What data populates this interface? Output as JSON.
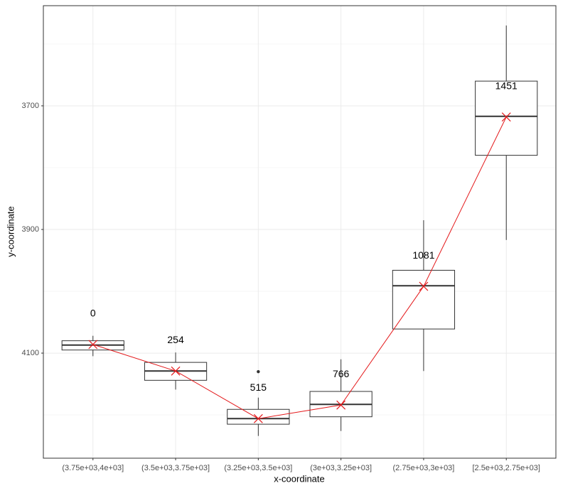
{
  "chart_data": {
    "type": "boxplot",
    "x_label": "x-coordinate",
    "y_label": "y-coordinate",
    "categories": [
      "(3.75e+03,4e+03]",
      "(3.5e+03,3.75e+03]",
      "(3.25e+03,3.5e+03]",
      "(3e+03,3.25e+03]",
      "(2.75e+03,3e+03]",
      "[2.5e+03,2.75e+03]"
    ],
    "boxes": [
      {
        "min": 4072,
        "q1": 4080,
        "median": 4087,
        "q3": 4095,
        "max": 4105,
        "mean": 4086,
        "outliers": []
      },
      {
        "min": 4099,
        "q1": 4115,
        "median": 4129,
        "q3": 4144,
        "max": 4159,
        "mean": 4129,
        "outliers": []
      },
      {
        "min": 4172,
        "q1": 4191,
        "median": 4206,
        "q3": 4215,
        "max": 4234,
        "mean": 4206,
        "outliers": [
          4130
        ]
      },
      {
        "min": 4110,
        "q1": 4162,
        "median": 4183,
        "q3": 4203,
        "max": 4226,
        "mean": 4184,
        "outliers": []
      },
      {
        "min": 3885,
        "q1": 3966,
        "median": 3991,
        "q3": 4061,
        "max": 4129,
        "mean": 3992,
        "outliers": []
      },
      {
        "min": 3570,
        "q1": 3660,
        "median": 3717,
        "q3": 3780,
        "max": 3917,
        "mean": 3718,
        "outliers": []
      }
    ],
    "box_labels": [
      0,
      254,
      515,
      766,
      1081,
      1451
    ],
    "mean_color": "#e41a1c",
    "ylim": [
      3538,
      4270
    ],
    "y_reversed": true,
    "yticks": [
      3700,
      3900,
      4100
    ],
    "minor_yticks": [
      3600,
      3800,
      4000,
      4200
    ],
    "grid": true
  }
}
